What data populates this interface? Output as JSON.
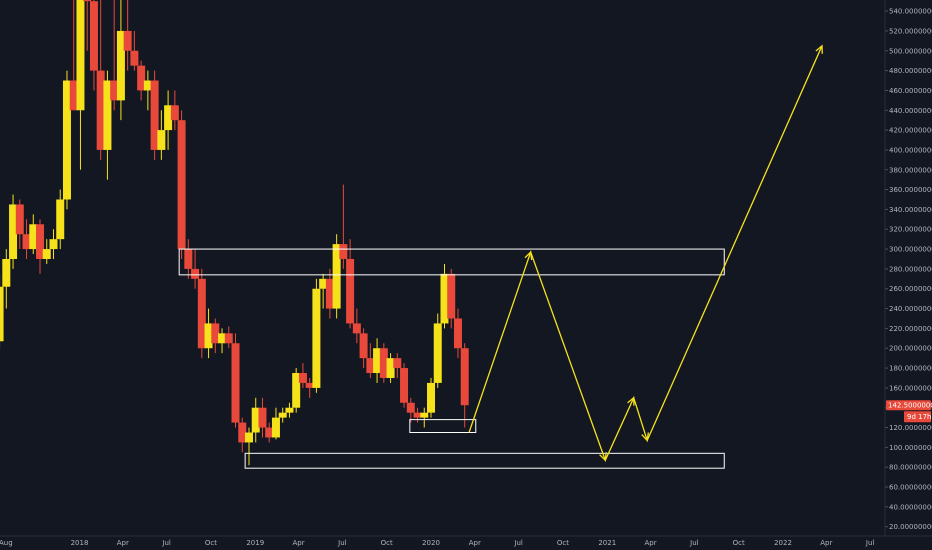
{
  "chart_data": {
    "type": "candlestick",
    "colors": {
      "background": "#131722",
      "up": "#f5e21b",
      "down": "#e8493a",
      "axis_text": "#b2b5be",
      "annotation_box": "#ffffff",
      "projection": "#f5e21b",
      "price_tag": "#e8493a"
    },
    "y_axis": {
      "range": [
        17,
        550
      ],
      "ticks": [
        "20.00000000",
        "40.00000000",
        "60.00000000",
        "80.00000000",
        "100.00000000",
        "120.00000000",
        "140.00000000",
        "160.00000000",
        "180.00000000",
        "200.00000000",
        "220.00000000",
        "240.00000000",
        "260.00000000",
        "280.00000000",
        "300.00000000",
        "320.00000000",
        "340.00000000",
        "360.00000000",
        "380.00000000",
        "400.00000000",
        "420.00000000",
        "440.00000000",
        "460.00000000",
        "480.00000000",
        "500.00000000",
        "520.00000000",
        "540.00000000"
      ]
    },
    "x_axis": {
      "ticks": [
        {
          "label": "Aug",
          "date": "2017-08"
        },
        {
          "label": "2018",
          "date": "2018-01"
        },
        {
          "label": "Apr",
          "date": "2018-04"
        },
        {
          "label": "Jul",
          "date": "2018-07"
        },
        {
          "label": "Oct",
          "date": "2018-10"
        },
        {
          "label": "2019",
          "date": "2019-01"
        },
        {
          "label": "Apr",
          "date": "2019-04"
        },
        {
          "label": "Jul",
          "date": "2019-07"
        },
        {
          "label": "Oct",
          "date": "2019-10"
        },
        {
          "label": "2020",
          "date": "2020-01"
        },
        {
          "label": "Apr",
          "date": "2020-04"
        },
        {
          "label": "Jul",
          "date": "2020-07"
        },
        {
          "label": "Oct",
          "date": "2020-10"
        },
        {
          "label": "2021",
          "date": "2021-01"
        },
        {
          "label": "Apr",
          "date": "2021-04"
        },
        {
          "label": "Jul",
          "date": "2021-07"
        },
        {
          "label": "Oct",
          "date": "2021-10"
        },
        {
          "label": "2022",
          "date": "2022-01"
        },
        {
          "label": "Apr",
          "date": "2022-04"
        },
        {
          "label": "Jul",
          "date": "2022-07"
        }
      ]
    },
    "candles": [
      [
        "2017-07-05",
        195,
        215,
        185,
        207
      ],
      [
        "2017-07-19",
        207,
        275,
        200,
        262
      ],
      [
        "2017-08-02",
        262,
        300,
        240,
        290
      ],
      [
        "2017-08-16",
        290,
        355,
        280,
        345
      ],
      [
        "2017-08-30",
        345,
        350,
        300,
        315
      ],
      [
        "2017-09-13",
        315,
        330,
        290,
        300
      ],
      [
        "2017-09-27",
        300,
        335,
        295,
        325
      ],
      [
        "2017-10-11",
        325,
        330,
        275,
        290
      ],
      [
        "2017-10-25",
        290,
        310,
        285,
        300
      ],
      [
        "2017-11-08",
        300,
        320,
        290,
        310
      ],
      [
        "2017-11-22",
        310,
        360,
        300,
        350
      ],
      [
        "2017-12-06",
        350,
        480,
        340,
        470
      ],
      [
        "2017-12-20",
        470,
        560,
        440,
        440
      ],
      [
        "2018-01-03",
        440,
        560,
        380,
        560
      ],
      [
        "2018-01-17",
        560,
        560,
        500,
        550
      ],
      [
        "2018-01-31",
        550,
        560,
        460,
        480
      ],
      [
        "2018-02-14",
        480,
        560,
        390,
        400
      ],
      [
        "2018-02-28",
        400,
        480,
        370,
        470
      ],
      [
        "2018-03-14",
        470,
        560,
        440,
        450
      ],
      [
        "2018-03-28",
        450,
        560,
        430,
        520
      ],
      [
        "2018-04-11",
        520,
        560,
        480,
        500
      ],
      [
        "2018-04-25",
        500,
        520,
        480,
        485
      ],
      [
        "2018-05-09",
        485,
        490,
        450,
        460
      ],
      [
        "2018-05-23",
        460,
        480,
        440,
        470
      ],
      [
        "2018-06-06",
        470,
        480,
        390,
        400
      ],
      [
        "2018-06-20",
        400,
        440,
        390,
        420
      ],
      [
        "2018-07-04",
        420,
        460,
        400,
        445
      ],
      [
        "2018-07-18",
        445,
        460,
        420,
        430
      ],
      [
        "2018-08-01",
        430,
        440,
        290,
        300
      ],
      [
        "2018-08-15",
        300,
        310,
        270,
        280
      ],
      [
        "2018-08-29",
        280,
        300,
        260,
        270
      ],
      [
        "2018-09-12",
        270,
        280,
        190,
        200
      ],
      [
        "2018-09-26",
        200,
        240,
        190,
        225
      ],
      [
        "2018-10-10",
        225,
        230,
        195,
        205
      ],
      [
        "2018-10-24",
        205,
        220,
        195,
        215
      ],
      [
        "2018-11-07",
        215,
        222,
        200,
        205
      ],
      [
        "2018-11-21",
        205,
        215,
        120,
        125
      ],
      [
        "2018-12-05",
        125,
        130,
        95,
        105
      ],
      [
        "2018-12-19",
        105,
        120,
        82,
        115
      ],
      [
        "2019-01-02",
        115,
        150,
        105,
        140
      ],
      [
        "2019-01-16",
        140,
        150,
        110,
        120
      ],
      [
        "2019-01-30",
        120,
        125,
        105,
        110
      ],
      [
        "2019-02-13",
        110,
        140,
        108,
        130
      ],
      [
        "2019-02-27",
        130,
        140,
        125,
        135
      ],
      [
        "2019-03-13",
        135,
        145,
        130,
        140
      ],
      [
        "2019-03-27",
        140,
        180,
        135,
        175
      ],
      [
        "2019-04-10",
        175,
        185,
        160,
        165
      ],
      [
        "2019-04-24",
        165,
        170,
        150,
        160
      ],
      [
        "2019-05-08",
        160,
        270,
        155,
        260
      ],
      [
        "2019-05-22",
        260,
        275,
        240,
        270
      ],
      [
        "2019-06-05",
        270,
        280,
        230,
        240
      ],
      [
        "2019-06-19",
        240,
        315,
        230,
        305
      ],
      [
        "2019-07-03",
        305,
        365,
        280,
        290
      ],
      [
        "2019-07-17",
        290,
        310,
        220,
        225
      ],
      [
        "2019-07-31",
        225,
        240,
        205,
        215
      ],
      [
        "2019-08-14",
        215,
        220,
        180,
        190
      ],
      [
        "2019-08-28",
        190,
        205,
        170,
        175
      ],
      [
        "2019-09-11",
        175,
        210,
        165,
        200
      ],
      [
        "2019-09-25",
        200,
        205,
        165,
        170
      ],
      [
        "2019-10-09",
        170,
        195,
        165,
        190
      ],
      [
        "2019-10-23",
        190,
        195,
        170,
        180
      ],
      [
        "2019-11-06",
        180,
        185,
        140,
        145
      ],
      [
        "2019-11-20",
        145,
        150,
        125,
        135
      ],
      [
        "2019-12-04",
        135,
        140,
        125,
        130
      ],
      [
        "2019-12-18",
        130,
        140,
        120,
        135
      ],
      [
        "2020-01-01",
        135,
        170,
        130,
        165
      ],
      [
        "2020-01-15",
        165,
        235,
        160,
        225
      ],
      [
        "2020-01-29",
        225,
        285,
        220,
        275
      ],
      [
        "2020-02-12",
        275,
        280,
        220,
        230
      ],
      [
        "2020-02-26",
        230,
        240,
        190,
        200
      ],
      [
        "2020-03-11",
        200,
        205,
        120,
        142.5
      ]
    ],
    "annotations": [
      {
        "type": "rectangle",
        "time": [
          "2018-07-27",
          "2021-09-01"
        ],
        "price": [
          274,
          300
        ]
      },
      {
        "type": "rectangle",
        "time": [
          "2018-12-11",
          "2021-09-01"
        ],
        "price": [
          79,
          94
        ]
      },
      {
        "type": "rectangle",
        "time": [
          "2019-11-18",
          "2020-04-03"
        ],
        "price": [
          115,
          128
        ]
      }
    ],
    "projection_path": [
      [
        "2020-03-20",
        115
      ],
      [
        "2020-07-26",
        297
      ],
      [
        "2020-12-28",
        87
      ],
      [
        "2021-02-25",
        150
      ],
      [
        "2021-03-25",
        107
      ],
      [
        "2022-03-23",
        505
      ]
    ],
    "last_price": {
      "value": 142.5,
      "label": "142.50000001",
      "countdown": "9d 17h"
    }
  }
}
